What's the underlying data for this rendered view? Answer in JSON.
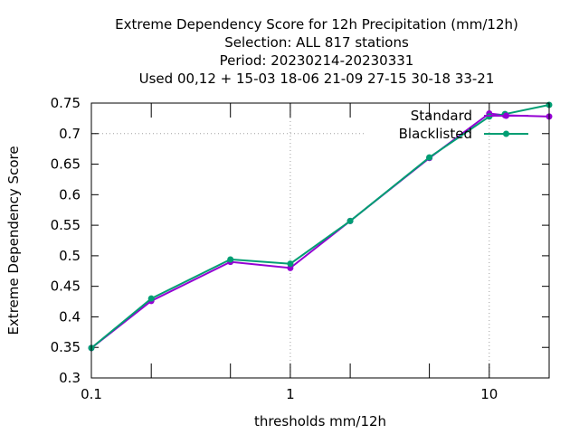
{
  "chart_data": {
    "type": "line",
    "title_lines": [
      "Extreme Dependency Score  for 12h Precipitation (mm/12h)",
      "Selection: ALL    817 stations",
      "Period: 20230214-20230331",
      "Used  00,12  + 15-03 18-06 21-09 27-15 30-18 33-21"
    ],
    "xlabel": "thresholds mm/12h",
    "ylabel": "Extreme Dependency Score",
    "x_scale": "log",
    "xlim": [
      0.1,
      20
    ],
    "ylim": [
      0.3,
      0.75
    ],
    "x_ticks": [
      {
        "value": 0.1,
        "label": "0.1"
      },
      {
        "value": 0.2,
        "label": ""
      },
      {
        "value": 0.5,
        "label": ""
      },
      {
        "value": 1,
        "label": "1"
      },
      {
        "value": 2,
        "label": ""
      },
      {
        "value": 5,
        "label": ""
      },
      {
        "value": 10,
        "label": "10"
      },
      {
        "value": 20,
        "label": ""
      }
    ],
    "y_ticks": [
      {
        "value": 0.3,
        "label": "0.3"
      },
      {
        "value": 0.35,
        "label": "0.35"
      },
      {
        "value": 0.4,
        "label": "0.4"
      },
      {
        "value": 0.45,
        "label": "0.45"
      },
      {
        "value": 0.5,
        "label": "0.5"
      },
      {
        "value": 0.55,
        "label": "0.55"
      },
      {
        "value": 0.6,
        "label": "0.6"
      },
      {
        "value": 0.65,
        "label": "0.65"
      },
      {
        "value": 0.7,
        "label": "0.7"
      },
      {
        "value": 0.75,
        "label": "0.75"
      }
    ],
    "grid": true,
    "grid_x_at": [
      1,
      10
    ],
    "grid_y_at": [
      0.7
    ],
    "legend_position": "top-right",
    "x": [
      0.1,
      0.2,
      0.5,
      1,
      2,
      5,
      10,
      12,
      20
    ],
    "series": [
      {
        "name": "Standard",
        "color": "#9400d3",
        "values": [
          0.349,
          0.426,
          0.49,
          0.48,
          0.557,
          0.66,
          0.733,
          0.73,
          0.728
        ]
      },
      {
        "name": "Blacklisted",
        "color": "#009e73",
        "values": [
          0.349,
          0.43,
          0.494,
          0.487,
          0.557,
          0.661,
          0.728,
          0.732,
          0.747
        ]
      }
    ]
  }
}
